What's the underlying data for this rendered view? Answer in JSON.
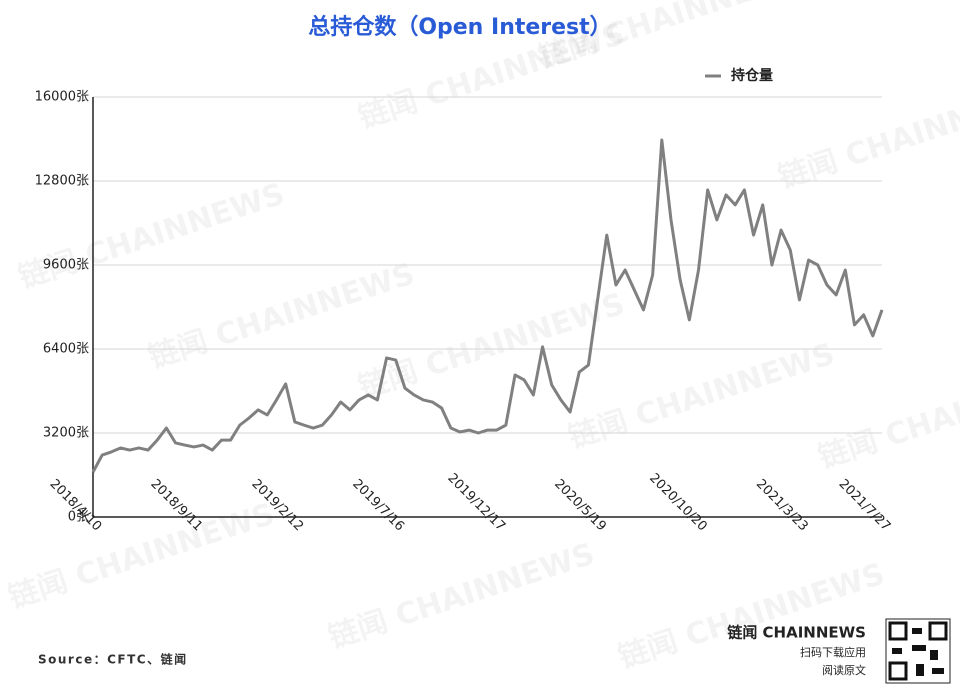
{
  "chart_data": {
    "type": "line",
    "title": "总持仓数（Open Interest）",
    "categories": [
      "2018/4/10",
      null,
      null,
      null,
      null,
      null,
      null,
      null,
      null,
      null,
      null,
      "2018/9/11",
      null,
      null,
      null,
      null,
      null,
      null,
      null,
      null,
      null,
      null,
      "2019/2/12",
      null,
      null,
      null,
      null,
      null,
      null,
      null,
      null,
      null,
      null,
      "2019/7/16",
      null,
      null,
      null,
      null,
      null,
      null,
      null,
      null,
      null,
      null,
      "2019/12/17",
      null,
      null,
      null,
      null,
      null,
      null,
      null,
      null,
      null,
      null,
      "2020/5/19",
      null,
      null,
      null,
      null,
      null,
      null,
      null,
      null,
      null,
      null,
      "2020/10/20",
      null,
      null,
      null,
      null,
      null,
      null,
      null,
      null,
      null,
      null,
      "2021/3/23",
      null,
      null,
      null,
      null,
      null,
      null,
      null,
      null,
      "2021/7/27"
    ],
    "series": [
      {
        "name": "持仓量",
        "color": "#808080",
        "values": [
          1710,
          2360,
          2480,
          2630,
          2550,
          2630,
          2550,
          2930,
          3390,
          2820,
          2740,
          2670,
          2740,
          2550,
          2930,
          2930,
          3500,
          3770,
          4080,
          3890,
          4460,
          5070,
          3620,
          3500,
          3390,
          3500,
          3890,
          4380,
          4080,
          4460,
          4650,
          4460,
          6060,
          5980,
          4910,
          4650,
          4460,
          4380,
          4150,
          3390,
          3240,
          3310,
          3200,
          3310,
          3310,
          3500,
          5410,
          5220,
          4650,
          6480,
          5030,
          4460,
          4000,
          5520,
          5790,
          8270,
          10740,
          8840,
          9410,
          8650,
          7890,
          9220,
          14360,
          11320,
          9030,
          7510,
          9410,
          12460,
          11320,
          12270,
          11890,
          12460,
          10740,
          11890,
          9600,
          10930,
          10170,
          8270,
          9790,
          9600,
          8840,
          8460,
          9410,
          7320,
          7700,
          6900,
          7890
        ]
      }
    ],
    "ylim": [
      0,
      16000
    ],
    "yticks": [
      {
        "value": 0,
        "label": "0张"
      },
      {
        "value": 3200,
        "label": "3200张"
      },
      {
        "value": 6400,
        "label": "6400张"
      },
      {
        "value": 9600,
        "label": "9600张"
      },
      {
        "value": 12800,
        "label": "12800张"
      },
      {
        "value": 16000,
        "label": "16000张"
      }
    ],
    "grid": true,
    "legend": "top-right",
    "source": "Source：CFTC、链闻",
    "watermark": "链闻 CHAINNEWS",
    "brand": "链闻 CHAINNEWS",
    "cta_download": "扫码下载应用",
    "cta_read": "阅读原文"
  }
}
